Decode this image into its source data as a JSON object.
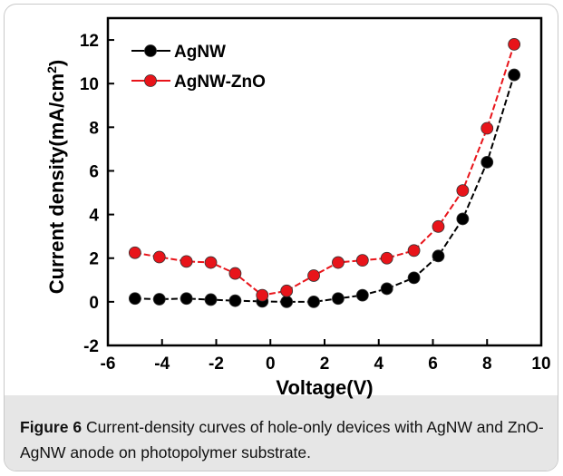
{
  "caption": {
    "label": "Figure 6",
    "text": " Current-density curves of hole-only devices with AgNW and ZnO-AgNW anode on photopolymer substrate."
  },
  "chart_data": {
    "type": "line",
    "xlabel": "Voltage(V)",
    "ylabel": "Current density(mA/cm",
    "ylabel_sup": "2",
    "ylabel_end": ")",
    "xlim": [
      -6,
      10
    ],
    "ylim": [
      -2,
      13
    ],
    "xticks": [
      -6,
      -4,
      -2,
      0,
      2,
      4,
      6,
      8,
      10
    ],
    "yticks": [
      -2,
      0,
      2,
      4,
      6,
      8,
      10,
      12
    ],
    "grid": false,
    "legend_position": "top-left",
    "series": [
      {
        "name": "AgNW",
        "color": "#000000",
        "x": [
          -5.0,
          -4.1,
          -3.1,
          -2.2,
          -1.3,
          -0.3,
          0.6,
          1.6,
          2.5,
          3.4,
          4.3,
          5.3,
          6.2,
          7.1,
          8.0,
          9.0
        ],
        "y": [
          0.15,
          0.12,
          0.15,
          0.1,
          0.05,
          0.02,
          0.0,
          0.0,
          0.15,
          0.3,
          0.6,
          1.1,
          2.1,
          3.8,
          6.4,
          10.4
        ]
      },
      {
        "name": "AgNW-ZnO",
        "color": "#e8141a",
        "x": [
          -5.0,
          -4.1,
          -3.1,
          -2.2,
          -1.3,
          -0.3,
          0.6,
          1.6,
          2.5,
          3.4,
          4.3,
          5.3,
          6.2,
          7.1,
          8.0,
          9.0
        ],
        "y": [
          2.25,
          2.05,
          1.85,
          1.8,
          1.3,
          0.3,
          0.5,
          1.2,
          1.8,
          1.9,
          2.0,
          2.35,
          3.45,
          5.1,
          7.95,
          11.8
        ]
      }
    ]
  }
}
